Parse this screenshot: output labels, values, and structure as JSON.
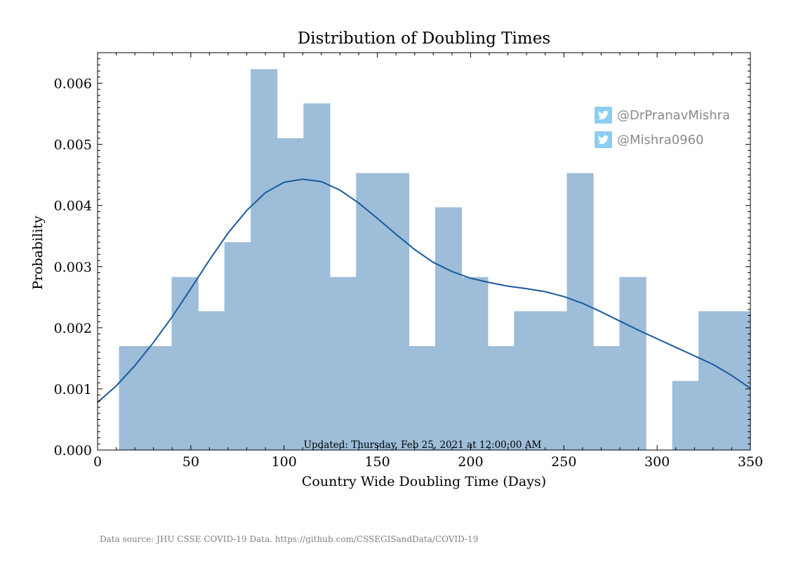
{
  "chart_data": {
    "type": "bar",
    "title": "Distribution of Doubling Times",
    "xlabel": "Country Wide Doubling Time (Days)",
    "ylabel": "Probability",
    "xlim": [
      0,
      350
    ],
    "ylim": [
      0,
      0.0065
    ],
    "xticks": [
      "0",
      "50",
      "100",
      "150",
      "200",
      "250",
      "300",
      "350"
    ],
    "yticks": [
      "0.000",
      "0.001",
      "0.002",
      "0.003",
      "0.004",
      "0.005",
      "0.006"
    ],
    "grid": false,
    "bins": [
      {
        "start": 11.5,
        "end": 25.6,
        "value": 0.0017
      },
      {
        "start": 25.6,
        "end": 39.7,
        "value": 0.0017
      },
      {
        "start": 39.7,
        "end": 53.9,
        "value": 0.00283
      },
      {
        "start": 53.9,
        "end": 68.0,
        "value": 0.00227
      },
      {
        "start": 68.0,
        "end": 82.1,
        "value": 0.0034
      },
      {
        "start": 82.1,
        "end": 96.2,
        "value": 0.00623
      },
      {
        "start": 96.2,
        "end": 110.4,
        "value": 0.0051
      },
      {
        "start": 110.4,
        "end": 124.5,
        "value": 0.00567
      },
      {
        "start": 124.5,
        "end": 138.6,
        "value": 0.00283
      },
      {
        "start": 138.6,
        "end": 152.7,
        "value": 0.00453
      },
      {
        "start": 152.7,
        "end": 166.9,
        "value": 0.00453
      },
      {
        "start": 166.9,
        "end": 181.0,
        "value": 0.0017
      },
      {
        "start": 181.0,
        "end": 195.1,
        "value": 0.00397
      },
      {
        "start": 195.1,
        "end": 209.2,
        "value": 0.00283
      },
      {
        "start": 209.2,
        "end": 223.3,
        "value": 0.0017
      },
      {
        "start": 223.3,
        "end": 237.5,
        "value": 0.00227
      },
      {
        "start": 237.5,
        "end": 251.6,
        "value": 0.00227
      },
      {
        "start": 251.6,
        "end": 265.7,
        "value": 0.00453
      },
      {
        "start": 265.7,
        "end": 279.8,
        "value": 0.0017
      },
      {
        "start": 279.8,
        "end": 294.0,
        "value": 0.00283
      },
      {
        "start": 294.0,
        "end": 308.1,
        "value": 0.0
      },
      {
        "start": 308.1,
        "end": 322.2,
        "value": 0.00113
      },
      {
        "start": 322.2,
        "end": 336.3,
        "value": 0.00227
      },
      {
        "start": 336.3,
        "end": 350.0,
        "value": 0.00227
      }
    ],
    "kde": {
      "x": [
        0,
        10,
        20,
        30,
        40,
        50,
        60,
        70,
        80,
        90,
        100,
        110,
        120,
        130,
        140,
        150,
        160,
        170,
        180,
        190,
        200,
        210,
        220,
        230,
        240,
        250,
        260,
        270,
        280,
        290,
        300,
        310,
        320,
        330,
        340,
        350
      ],
      "y": [
        0.00078,
        0.00105,
        0.00138,
        0.00176,
        0.00218,
        0.00264,
        0.00311,
        0.00355,
        0.00392,
        0.00421,
        0.00438,
        0.00443,
        0.00439,
        0.00425,
        0.00404,
        0.00379,
        0.00353,
        0.00328,
        0.00307,
        0.00292,
        0.00281,
        0.00274,
        0.00268,
        0.00264,
        0.00259,
        0.00251,
        0.0024,
        0.00226,
        0.00211,
        0.00196,
        0.00182,
        0.00168,
        0.00154,
        0.0014,
        0.00122,
        0.00101
      ]
    },
    "bar_color": "#9dbdd9",
    "line_color": "#1a5a9c",
    "updated_label": "Updated: Thursday, Feb 25, 2021 at 12:00:00 AM"
  },
  "credits": {
    "handles": [
      "@DrPranavMishra",
      "@Mishra0960"
    ],
    "icon": "twitter-bird-icon",
    "icon_color": "#8ecdf2",
    "handle_color": "#8a8a8a"
  },
  "footer": {
    "source": "Data source: JHU CSSE COVID-19 Data. https://github.com/CSSEGISandData/COVID-19"
  }
}
